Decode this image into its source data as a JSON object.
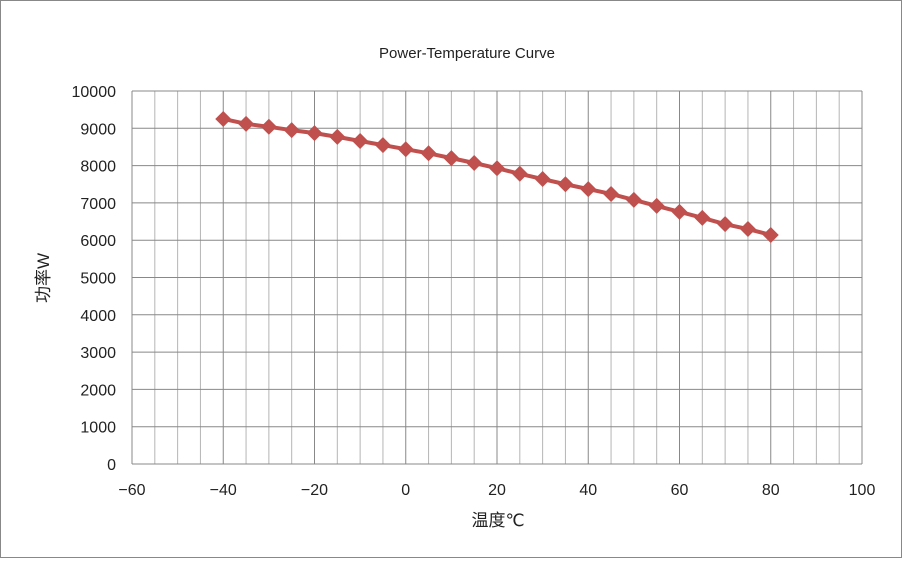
{
  "chart_data": {
    "type": "line",
    "title": "Power-Temperature Curve",
    "xlabel": "温度℃",
    "ylabel": "功率W",
    "xlim": [
      -60,
      100
    ],
    "ylim": [
      0,
      10000
    ],
    "xticks": [
      -60,
      -40,
      -20,
      0,
      20,
      40,
      60,
      80,
      100
    ],
    "yticks": [
      0,
      1000,
      2000,
      3000,
      4000,
      5000,
      6000,
      7000,
      8000,
      9000,
      10000
    ],
    "grid": true,
    "marker": "diamond",
    "series_color": "#c0504d",
    "x": [
      -40,
      -35,
      -30,
      -25,
      -20,
      -15,
      -10,
      -5,
      0,
      5,
      10,
      15,
      20,
      25,
      30,
      35,
      40,
      45,
      50,
      55,
      60,
      65,
      70,
      75,
      80
    ],
    "series": [
      {
        "values": [
          9250,
          9120,
          9040,
          8950,
          8870,
          8770,
          8660,
          8550,
          8440,
          8330,
          8200,
          8070,
          7930,
          7780,
          7640,
          7500,
          7370,
          7240,
          7080,
          6920,
          6760,
          6600,
          6430,
          6300,
          6140
        ]
      }
    ]
  }
}
